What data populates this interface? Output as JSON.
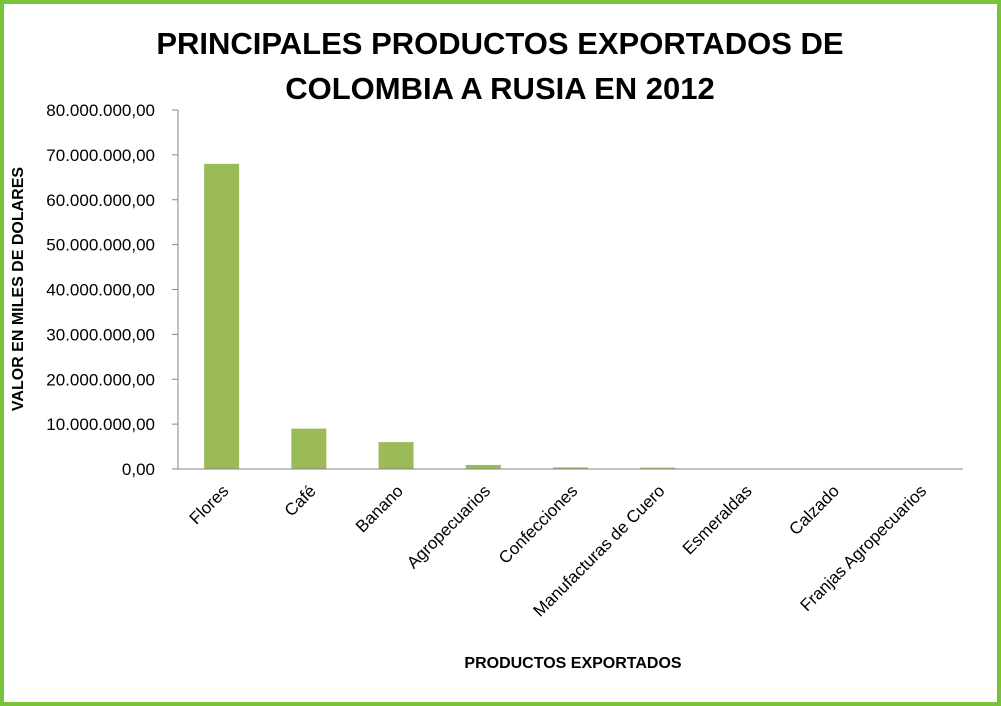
{
  "chart_data": {
    "type": "bar",
    "title_lines": [
      "PRINCIPALES PRODUCTOS EXPORTADOS DE",
      "COLOMBIA A RUSIA EN 2012"
    ],
    "xlabel": "PRODUCTOS EXPORTADOS",
    "ylabel": "VALOR EN MILES DE DOLARES",
    "ylim": [
      0,
      80000000
    ],
    "yticks": [
      0,
      10000000,
      20000000,
      30000000,
      40000000,
      50000000,
      60000000,
      70000000,
      80000000
    ],
    "ytick_labels": [
      "0,00",
      "10.000.000,00",
      "20.000.000,00",
      "30.000.000,00",
      "40.000.000,00",
      "50.000.000,00",
      "60.000.000,00",
      "70.000.000,00",
      "80.000.000,00"
    ],
    "categories": [
      "Flores",
      "Café",
      "Banano",
      "Agropecuarios",
      "Confecciones",
      "Manufacturas de Cuero",
      "Esmeraldas",
      "Calzado",
      "Franjas Agropecuarios"
    ],
    "values": [
      68000000,
      9000000,
      6000000,
      900000,
      350000,
      300000,
      50000,
      20000,
      10000
    ],
    "bar_color": "#9bbb59",
    "border_color": "#79c339",
    "grid": false,
    "legend": "none"
  }
}
